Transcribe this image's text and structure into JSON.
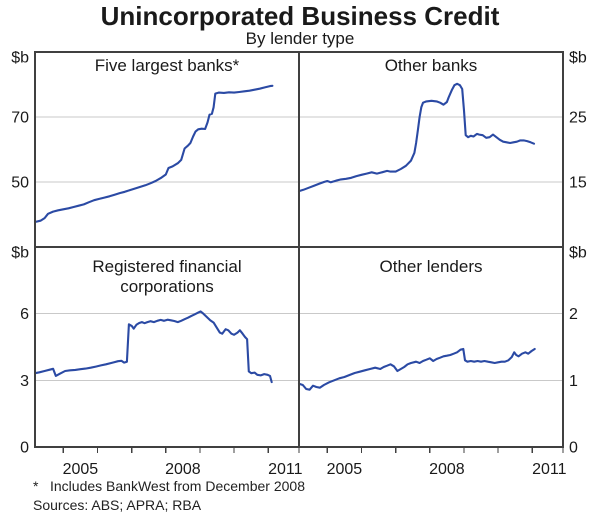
{
  "chart_data": {
    "type": "line",
    "title": "Unincorporated Business Credit",
    "subtitle": "By lender type",
    "unit": "$b",
    "x_domain": [
      2003.67,
      2011.4
    ],
    "x_ticks": [
      2004.5,
      2005.5,
      2006.5,
      2007.5,
      2008.5,
      2009.5,
      2010.5,
      2011.5
    ],
    "x_labels": [
      {
        "year": 2005,
        "text": "2005"
      },
      {
        "year": 2008,
        "text": "2008"
      },
      {
        "year": 2011,
        "text": "2011"
      }
    ],
    "grid_on": true,
    "grid_color": "#c9c9c9",
    "line_color": "#2b4aa4",
    "border_color": "#404040",
    "panels": [
      {
        "key": "five-largest-banks",
        "row": 0,
        "col": 0,
        "title_lines": [
          "Five largest banks*"
        ],
        "ylim": [
          30,
          90
        ],
        "gridlines": [
          50,
          70
        ],
        "axis_side": "left",
        "axis_labels": [
          {
            "value": 90,
            "text": "$b"
          },
          {
            "value": 70,
            "text": "70"
          },
          {
            "value": 50,
            "text": "50"
          }
        ],
        "series": [
          [
            2003.67,
            37.7
          ],
          [
            2003.83,
            38.1
          ],
          [
            2003.95,
            38.9
          ],
          [
            2004.05,
            40.2
          ],
          [
            2004.2,
            40.9
          ],
          [
            2004.35,
            41.3
          ],
          [
            2004.5,
            41.6
          ],
          [
            2004.65,
            41.9
          ],
          [
            2004.8,
            42.3
          ],
          [
            2004.95,
            42.7
          ],
          [
            2005.1,
            43.1
          ],
          [
            2005.25,
            43.8
          ],
          [
            2005.4,
            44.4
          ],
          [
            2005.55,
            44.8
          ],
          [
            2005.7,
            45.2
          ],
          [
            2005.85,
            45.6
          ],
          [
            2006.0,
            46.1
          ],
          [
            2006.15,
            46.6
          ],
          [
            2006.3,
            47.0
          ],
          [
            2006.45,
            47.5
          ],
          [
            2006.6,
            48.0
          ],
          [
            2006.75,
            48.5
          ],
          [
            2006.9,
            49.0
          ],
          [
            2007.05,
            49.6
          ],
          [
            2007.2,
            50.3
          ],
          [
            2007.35,
            51.2
          ],
          [
            2007.5,
            52.3
          ],
          [
            2007.58,
            54.3
          ],
          [
            2007.7,
            54.8
          ],
          [
            2007.85,
            55.8
          ],
          [
            2007.95,
            56.8
          ],
          [
            2008.05,
            60.3
          ],
          [
            2008.15,
            61.2
          ],
          [
            2008.22,
            62.0
          ],
          [
            2008.3,
            64.0
          ],
          [
            2008.37,
            65.5
          ],
          [
            2008.45,
            66.2
          ],
          [
            2008.55,
            66.4
          ],
          [
            2008.65,
            66.3
          ],
          [
            2008.72,
            68.3
          ],
          [
            2008.78,
            70.7
          ],
          [
            2008.85,
            71.0
          ],
          [
            2008.9,
            73.0
          ],
          [
            2008.95,
            77.2
          ],
          [
            2009.05,
            77.5
          ],
          [
            2009.2,
            77.4
          ],
          [
            2009.35,
            77.6
          ],
          [
            2009.5,
            77.5
          ],
          [
            2009.65,
            77.7
          ],
          [
            2009.8,
            77.9
          ],
          [
            2009.95,
            78.1
          ],
          [
            2010.1,
            78.4
          ],
          [
            2010.25,
            78.7
          ],
          [
            2010.4,
            79.1
          ],
          [
            2010.55,
            79.5
          ],
          [
            2010.62,
            79.6
          ]
        ]
      },
      {
        "key": "other-banks",
        "row": 0,
        "col": 1,
        "title_lines": [
          "Other banks"
        ],
        "ylim": [
          5,
          35
        ],
        "gridlines": [
          15,
          25
        ],
        "axis_side": "right",
        "axis_labels": [
          {
            "value": 35,
            "text": "$b"
          },
          {
            "value": 25,
            "text": "25"
          },
          {
            "value": 15,
            "text": "15"
          }
        ],
        "series": [
          [
            2003.67,
            13.6
          ],
          [
            2003.8,
            13.8
          ],
          [
            2003.95,
            14.1
          ],
          [
            2004.1,
            14.4
          ],
          [
            2004.25,
            14.7
          ],
          [
            2004.4,
            15.0
          ],
          [
            2004.5,
            15.15
          ],
          [
            2004.6,
            14.95
          ],
          [
            2004.75,
            15.2
          ],
          [
            2004.9,
            15.4
          ],
          [
            2005.05,
            15.5
          ],
          [
            2005.2,
            15.65
          ],
          [
            2005.35,
            15.9
          ],
          [
            2005.5,
            16.1
          ],
          [
            2005.65,
            16.3
          ],
          [
            2005.8,
            16.5
          ],
          [
            2005.95,
            16.3
          ],
          [
            2006.1,
            16.5
          ],
          [
            2006.25,
            16.7
          ],
          [
            2006.35,
            16.6
          ],
          [
            2006.5,
            16.6
          ],
          [
            2006.65,
            17.0
          ],
          [
            2006.8,
            17.5
          ],
          [
            2006.95,
            18.3
          ],
          [
            2007.05,
            19.5
          ],
          [
            2007.1,
            21.0
          ],
          [
            2007.15,
            23.0
          ],
          [
            2007.2,
            25.0
          ],
          [
            2007.25,
            26.5
          ],
          [
            2007.3,
            27.2
          ],
          [
            2007.4,
            27.4
          ],
          [
            2007.55,
            27.5
          ],
          [
            2007.7,
            27.4
          ],
          [
            2007.8,
            27.2
          ],
          [
            2007.9,
            26.9
          ],
          [
            2008.0,
            27.3
          ],
          [
            2008.05,
            28.0
          ],
          [
            2008.15,
            29.2
          ],
          [
            2008.22,
            29.9
          ],
          [
            2008.3,
            30.1
          ],
          [
            2008.38,
            29.9
          ],
          [
            2008.45,
            29.3
          ],
          [
            2008.5,
            26.0
          ],
          [
            2008.55,
            22.2
          ],
          [
            2008.62,
            21.9
          ],
          [
            2008.7,
            22.1
          ],
          [
            2008.78,
            22.0
          ],
          [
            2008.88,
            22.4
          ],
          [
            2008.95,
            22.3
          ],
          [
            2009.05,
            22.2
          ],
          [
            2009.15,
            21.8
          ],
          [
            2009.25,
            21.9
          ],
          [
            2009.35,
            22.3
          ],
          [
            2009.45,
            21.9
          ],
          [
            2009.55,
            21.5
          ],
          [
            2009.65,
            21.2
          ],
          [
            2009.75,
            21.1
          ],
          [
            2009.85,
            21.0
          ],
          [
            2009.95,
            21.1
          ],
          [
            2010.05,
            21.2
          ],
          [
            2010.15,
            21.4
          ],
          [
            2010.25,
            21.4
          ],
          [
            2010.35,
            21.3
          ],
          [
            2010.45,
            21.1
          ],
          [
            2010.55,
            20.9
          ]
        ]
      },
      {
        "key": "registered-financial-corporations",
        "row": 1,
        "col": 0,
        "title_lines": [
          "Registered financial",
          "corporations"
        ],
        "ylim": [
          0,
          9
        ],
        "gridlines": [
          3,
          6
        ],
        "axis_side": "left",
        "axis_labels": [
          {
            "value": 9,
            "text": "$b"
          },
          {
            "value": 6,
            "text": "6"
          },
          {
            "value": 3,
            "text": "3"
          },
          {
            "value": 0,
            "text": "0"
          }
        ],
        "series": [
          [
            2003.67,
            3.32
          ],
          [
            2003.8,
            3.36
          ],
          [
            2003.95,
            3.42
          ],
          [
            2004.1,
            3.48
          ],
          [
            2004.2,
            3.52
          ],
          [
            2004.28,
            3.2
          ],
          [
            2004.4,
            3.3
          ],
          [
            2004.55,
            3.42
          ],
          [
            2004.7,
            3.45
          ],
          [
            2004.85,
            3.47
          ],
          [
            2005.0,
            3.5
          ],
          [
            2005.15,
            3.53
          ],
          [
            2005.3,
            3.57
          ],
          [
            2005.45,
            3.62
          ],
          [
            2005.6,
            3.67
          ],
          [
            2005.75,
            3.72
          ],
          [
            2005.9,
            3.78
          ],
          [
            2006.0,
            3.82
          ],
          [
            2006.1,
            3.86
          ],
          [
            2006.2,
            3.88
          ],
          [
            2006.28,
            3.8
          ],
          [
            2006.36,
            3.84
          ],
          [
            2006.42,
            5.52
          ],
          [
            2006.5,
            5.45
          ],
          [
            2006.56,
            5.33
          ],
          [
            2006.64,
            5.5
          ],
          [
            2006.72,
            5.58
          ],
          [
            2006.8,
            5.62
          ],
          [
            2006.88,
            5.57
          ],
          [
            2006.96,
            5.62
          ],
          [
            2007.05,
            5.66
          ],
          [
            2007.15,
            5.62
          ],
          [
            2007.25,
            5.68
          ],
          [
            2007.35,
            5.72
          ],
          [
            2007.45,
            5.68
          ],
          [
            2007.55,
            5.73
          ],
          [
            2007.65,
            5.7
          ],
          [
            2007.75,
            5.67
          ],
          [
            2007.85,
            5.62
          ],
          [
            2007.95,
            5.68
          ],
          [
            2008.05,
            5.75
          ],
          [
            2008.15,
            5.82
          ],
          [
            2008.25,
            5.9
          ],
          [
            2008.35,
            5.97
          ],
          [
            2008.45,
            6.05
          ],
          [
            2008.52,
            6.1
          ],
          [
            2008.6,
            6.0
          ],
          [
            2008.7,
            5.85
          ],
          [
            2008.8,
            5.7
          ],
          [
            2008.9,
            5.6
          ],
          [
            2009.0,
            5.35
          ],
          [
            2009.08,
            5.15
          ],
          [
            2009.15,
            5.1
          ],
          [
            2009.25,
            5.3
          ],
          [
            2009.33,
            5.25
          ],
          [
            2009.42,
            5.1
          ],
          [
            2009.5,
            5.05
          ],
          [
            2009.6,
            5.15
          ],
          [
            2009.67,
            5.25
          ],
          [
            2009.75,
            5.1
          ],
          [
            2009.82,
            4.95
          ],
          [
            2009.88,
            4.85
          ],
          [
            2009.93,
            3.4
          ],
          [
            2010.0,
            3.32
          ],
          [
            2010.1,
            3.35
          ],
          [
            2010.18,
            3.25
          ],
          [
            2010.28,
            3.22
          ],
          [
            2010.38,
            3.28
          ],
          [
            2010.48,
            3.25
          ],
          [
            2010.55,
            3.2
          ],
          [
            2010.6,
            2.92
          ]
        ]
      },
      {
        "key": "other-lenders",
        "row": 1,
        "col": 1,
        "title_lines": [
          "Other lenders"
        ],
        "ylim": [
          0,
          3
        ],
        "gridlines": [
          1,
          2
        ],
        "axis_side": "right",
        "axis_labels": [
          {
            "value": 3,
            "text": "$b"
          },
          {
            "value": 2,
            "text": "2"
          },
          {
            "value": 1,
            "text": "1"
          },
          {
            "value": 0,
            "text": "0"
          }
        ],
        "series": [
          [
            2003.67,
            0.95
          ],
          [
            2003.78,
            0.93
          ],
          [
            2003.88,
            0.87
          ],
          [
            2003.98,
            0.86
          ],
          [
            2004.08,
            0.92
          ],
          [
            2004.18,
            0.9
          ],
          [
            2004.28,
            0.89
          ],
          [
            2004.4,
            0.93
          ],
          [
            2004.55,
            0.97
          ],
          [
            2004.7,
            1.0
          ],
          [
            2004.85,
            1.03
          ],
          [
            2005.0,
            1.05
          ],
          [
            2005.15,
            1.08
          ],
          [
            2005.3,
            1.11
          ],
          [
            2005.45,
            1.13
          ],
          [
            2005.6,
            1.15
          ],
          [
            2005.75,
            1.17
          ],
          [
            2005.9,
            1.19
          ],
          [
            2006.05,
            1.17
          ],
          [
            2006.15,
            1.2
          ],
          [
            2006.25,
            1.22
          ],
          [
            2006.35,
            1.24
          ],
          [
            2006.45,
            1.21
          ],
          [
            2006.55,
            1.14
          ],
          [
            2006.65,
            1.17
          ],
          [
            2006.75,
            1.2
          ],
          [
            2006.85,
            1.24
          ],
          [
            2006.95,
            1.26
          ],
          [
            2007.1,
            1.28
          ],
          [
            2007.2,
            1.26
          ],
          [
            2007.3,
            1.29
          ],
          [
            2007.4,
            1.31
          ],
          [
            2007.5,
            1.33
          ],
          [
            2007.6,
            1.29
          ],
          [
            2007.7,
            1.32
          ],
          [
            2007.8,
            1.34
          ],
          [
            2007.9,
            1.36
          ],
          [
            2008.0,
            1.37
          ],
          [
            2008.1,
            1.38
          ],
          [
            2008.2,
            1.4
          ],
          [
            2008.3,
            1.42
          ],
          [
            2008.4,
            1.46
          ],
          [
            2008.48,
            1.47
          ],
          [
            2008.53,
            1.3
          ],
          [
            2008.6,
            1.28
          ],
          [
            2008.7,
            1.29
          ],
          [
            2008.8,
            1.28
          ],
          [
            2008.9,
            1.29
          ],
          [
            2009.0,
            1.28
          ],
          [
            2009.1,
            1.29
          ],
          [
            2009.2,
            1.28
          ],
          [
            2009.3,
            1.27
          ],
          [
            2009.4,
            1.26
          ],
          [
            2009.5,
            1.27
          ],
          [
            2009.6,
            1.28
          ],
          [
            2009.7,
            1.28
          ],
          [
            2009.8,
            1.3
          ],
          [
            2009.9,
            1.35
          ],
          [
            2009.97,
            1.42
          ],
          [
            2010.03,
            1.38
          ],
          [
            2010.1,
            1.36
          ],
          [
            2010.2,
            1.4
          ],
          [
            2010.3,
            1.42
          ],
          [
            2010.38,
            1.4
          ],
          [
            2010.48,
            1.44
          ],
          [
            2010.57,
            1.47
          ]
        ]
      }
    ]
  },
  "footnotes": {
    "note_marker": "*",
    "note_text": "Includes BankWest from December 2008",
    "sources": "Sources: ABS; APRA; RBA"
  }
}
